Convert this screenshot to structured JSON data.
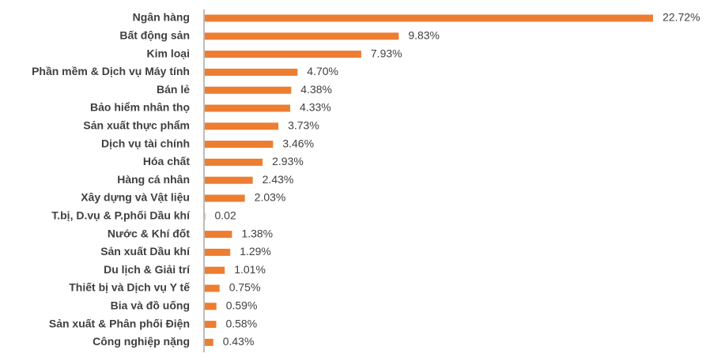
{
  "chart_data": {
    "type": "bar",
    "orientation": "horizontal",
    "color": "#ed7d31",
    "categories": [
      "Ngân hàng",
      "Bất động sản",
      "Kim loại",
      "Phần mềm & Dịch vụ Máy tính",
      "Bán lẻ",
      "Bảo hiểm nhân thọ",
      "Sản xuất thực phẩm",
      "Dịch vụ tài chính",
      "Hóa chất",
      "Hàng cá nhân",
      "Xây dựng và Vật liệu",
      "T.bị, D.vụ & P.phối Dầu khí",
      "Nước & Khí đốt",
      "Sản xuất Dầu khí",
      "Du lịch & Giải trí",
      "Thiết bị và Dịch vụ Y tế",
      "Bia và đồ uống",
      "Sản xuất & Phân phối Điện",
      "Công nghiệp nặng"
    ],
    "values": [
      22.72,
      9.83,
      7.93,
      4.7,
      4.38,
      4.33,
      3.73,
      3.46,
      2.93,
      2.43,
      2.03,
      0.02,
      1.38,
      1.29,
      1.01,
      0.75,
      0.59,
      0.58,
      0.43
    ],
    "value_labels": [
      "22.72%",
      "9.83%",
      "7.93%",
      "4.70%",
      "4.38%",
      "4.33%",
      "3.73%",
      "3.46%",
      "2.93%",
      "2.43%",
      "2.03%",
      "0.02",
      "1.38%",
      "1.29%",
      "1.01%",
      "0.75%",
      "0.59%",
      "0.58%",
      "0.43%"
    ]
  }
}
